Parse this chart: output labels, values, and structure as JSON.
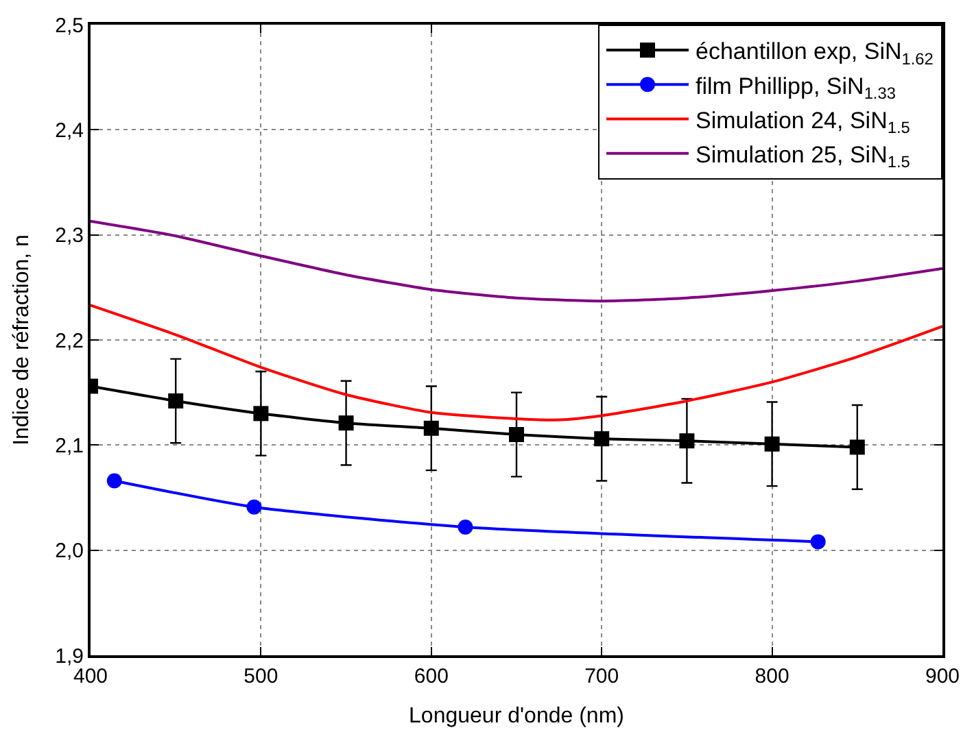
{
  "chart_data": {
    "type": "line",
    "xlabel": "Longueur d'onde (nm)",
    "ylabel": "Indice de réfraction, n",
    "xlim": [
      400,
      900
    ],
    "xticks": [
      400,
      500,
      600,
      700,
      800,
      900
    ],
    "ylim": [
      1.9,
      2.5
    ],
    "yticks": [
      {
        "value": 1.9,
        "label": "1,9"
      },
      {
        "value": 2.0,
        "label": "2,0"
      },
      {
        "value": 2.1,
        "label": "2,1"
      },
      {
        "value": 2.2,
        "label": "2,2"
      },
      {
        "value": 2.3,
        "label": "2,3"
      },
      {
        "value": 2.4,
        "label": "2,4"
      },
      {
        "value": 2.5,
        "label": "2,5"
      }
    ],
    "grid": true,
    "legend": "top right",
    "series": [
      {
        "name": "échantillon exp, SiN$_{1.62}$",
        "color": "#000000",
        "marker": "square",
        "x": [
          400,
          450,
          500,
          550,
          600,
          650,
          700,
          750,
          800,
          850
        ],
        "values": [
          2.156,
          2.142,
          2.13,
          2.121,
          2.116,
          2.11,
          2.106,
          2.104,
          2.101,
          2.098
        ],
        "errors": [
          null,
          0.04,
          0.04,
          0.04,
          0.04,
          0.04,
          0.04,
          0.04,
          0.04,
          0.04
        ]
      },
      {
        "name": "film Phillipp, SiN$_{1.33}$",
        "color": "#0000ff",
        "marker": "circle",
        "x": [
          414,
          496,
          620,
          827
        ],
        "values": [
          2.066,
          2.041,
          2.022,
          2.008
        ]
      },
      {
        "name": "Simulation 24, SiN$_{1.5}$",
        "color": "#ff0000",
        "marker": "none",
        "x": [
          400,
          450,
          500,
          550,
          600,
          650,
          675,
          700,
          750,
          800,
          850,
          900
        ],
        "values": [
          2.233,
          2.205,
          2.174,
          2.148,
          2.131,
          2.125,
          2.124,
          2.128,
          2.142,
          2.16,
          2.184,
          2.213
        ]
      },
      {
        "name": "Simulation 25, SiN$_{1.5}$",
        "color": "#800080",
        "marker": "none",
        "x": [
          400,
          450,
          500,
          550,
          600,
          650,
          700,
          750,
          800,
          850,
          900
        ],
        "values": [
          2.313,
          2.299,
          2.28,
          2.262,
          2.248,
          2.24,
          2.237,
          2.24,
          2.247,
          2.256,
          2.268
        ]
      }
    ]
  }
}
